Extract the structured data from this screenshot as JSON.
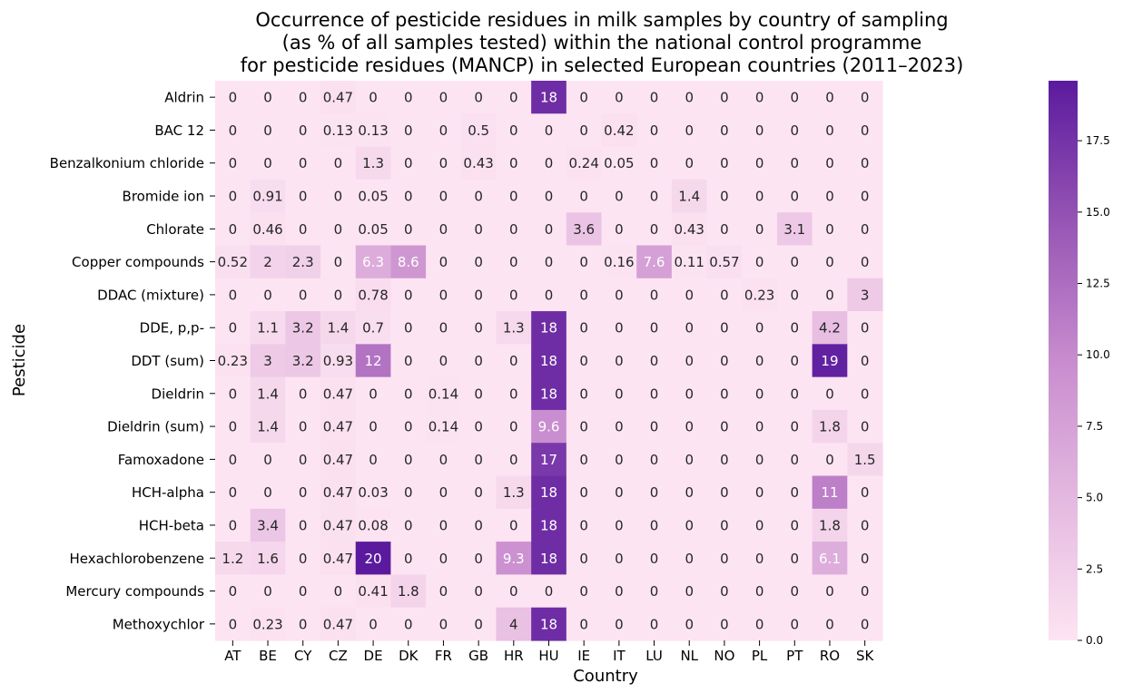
{
  "chart_data": {
    "type": "heatmap",
    "title": "Occurrence of pesticide residues in milk samples by country of sampling\n(as % of all samples tested) within the national control programme\nfor pesticide residues (MANCP) in selected European countries (2011–2023)",
    "xlabel": "Country",
    "ylabel": "Pesticide",
    "x": [
      "AT",
      "BE",
      "CY",
      "CZ",
      "DE",
      "DK",
      "FR",
      "GB",
      "HR",
      "HU",
      "IE",
      "IT",
      "LU",
      "NL",
      "NO",
      "PL",
      "PT",
      "RO",
      "SK"
    ],
    "y": [
      "Aldrin",
      "BAC 12",
      "Benzalkonium chloride",
      "Bromide ion",
      "Chlorate",
      "Copper compounds",
      "DDAC (mixture)",
      "DDE, p,p-",
      "DDT (sum)",
      "Dieldrin",
      "Dieldrin (sum)",
      "Famoxadone",
      "HCH-alpha",
      "HCH-beta",
      "Hexachlorobenzene",
      "Mercury compounds",
      "Methoxychlor"
    ],
    "values": [
      [
        0,
        0,
        0,
        0.47,
        0,
        0,
        0,
        0,
        0,
        18,
        0,
        0,
        0,
        0,
        0,
        0,
        0,
        0,
        0
      ],
      [
        0,
        0,
        0,
        0.13,
        0.13,
        0,
        0,
        0.5,
        0,
        0,
        0,
        0.42,
        0,
        0,
        0,
        0,
        0,
        0,
        0
      ],
      [
        0,
        0,
        0,
        0,
        1.3,
        0,
        0,
        0.43,
        0,
        0,
        0.24,
        0.05,
        0,
        0,
        0,
        0,
        0,
        0,
        0
      ],
      [
        0,
        0.91,
        0,
        0,
        0.05,
        0,
        0,
        0,
        0,
        0,
        0,
        0,
        0,
        1.4,
        0,
        0,
        0,
        0,
        0
      ],
      [
        0,
        0.46,
        0,
        0,
        0.05,
        0,
        0,
        0,
        0,
        0,
        3.6,
        0,
        0,
        0.43,
        0,
        0,
        3.1,
        0,
        0
      ],
      [
        0.52,
        2,
        2.3,
        0,
        6.3,
        8.6,
        0,
        0,
        0,
        0,
        0,
        0.16,
        7.6,
        0.11,
        0.57,
        0,
        0,
        0,
        0
      ],
      [
        0,
        0,
        0,
        0,
        0.78,
        0,
        0,
        0,
        0,
        0,
        0,
        0,
        0,
        0,
        0,
        0.23,
        0,
        0,
        3
      ],
      [
        0,
        1.1,
        3.2,
        1.4,
        0.7,
        0,
        0,
        0,
        1.3,
        18,
        0,
        0,
        0,
        0,
        0,
        0,
        0,
        4.2,
        0
      ],
      [
        0.23,
        3,
        3.2,
        0.93,
        12,
        0,
        0,
        0,
        0,
        18,
        0,
        0,
        0,
        0,
        0,
        0,
        0,
        19,
        0
      ],
      [
        0,
        1.4,
        0,
        0.47,
        0,
        0,
        0.14,
        0,
        0,
        18,
        0,
        0,
        0,
        0,
        0,
        0,
        0,
        0,
        0
      ],
      [
        0,
        1.4,
        0,
        0.47,
        0,
        0,
        0.14,
        0,
        0,
        9.6,
        0,
        0,
        0,
        0,
        0,
        0,
        0,
        1.8,
        0
      ],
      [
        0,
        0,
        0,
        0.47,
        0,
        0,
        0,
        0,
        0,
        17,
        0,
        0,
        0,
        0,
        0,
        0,
        0,
        0,
        1.5
      ],
      [
        0,
        0,
        0,
        0.47,
        0.03,
        0,
        0,
        0,
        1.3,
        18,
        0,
        0,
        0,
        0,
        0,
        0,
        0,
        11,
        0
      ],
      [
        0,
        3.4,
        0,
        0.47,
        0.08,
        0,
        0,
        0,
        0,
        18,
        0,
        0,
        0,
        0,
        0,
        0,
        0,
        1.8,
        0
      ],
      [
        1.2,
        1.6,
        0,
        0.47,
        20,
        0,
        0,
        0,
        9.3,
        18,
        0,
        0,
        0,
        0,
        0,
        0,
        0,
        6.1,
        0
      ],
      [
        0,
        0,
        0,
        0,
        0.41,
        1.8,
        0,
        0,
        0,
        0,
        0,
        0,
        0,
        0,
        0,
        0,
        0,
        0,
        0
      ],
      [
        0,
        0.23,
        0,
        0.47,
        0,
        0,
        0,
        0,
        4,
        18,
        0,
        0,
        0,
        0,
        0,
        0,
        0,
        0,
        0
      ]
    ],
    "colorbar": {
      "range": [
        0,
        19.6
      ],
      "ticks": [
        0,
        2.5,
        5,
        7.5,
        10,
        12.5,
        15,
        17.5
      ],
      "tick_labels": [
        "0.0",
        "2.5",
        "5.0",
        "7.5",
        "10.0",
        "12.5",
        "15.0",
        "17.5"
      ],
      "low_color": "#fde4f2",
      "high_color": "#5b1a9e"
    },
    "annotation_light_threshold": 5.5
  }
}
